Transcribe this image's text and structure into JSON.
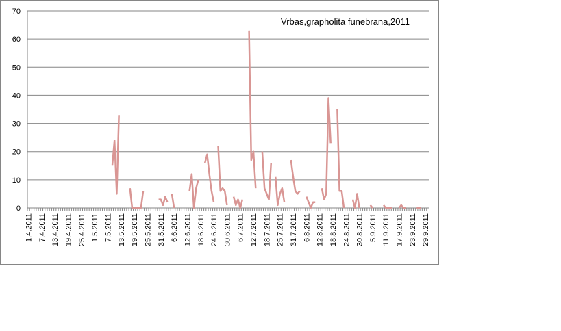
{
  "chart_data": {
    "type": "line",
    "title": "Vrbas,grapholita funebrana,2011",
    "categories": [
      "1.4.2011",
      null,
      null,
      null,
      null,
      null,
      "7.4.2011",
      null,
      null,
      null,
      null,
      null,
      "13.4.2011",
      null,
      null,
      null,
      null,
      null,
      "19.4.2011",
      null,
      null,
      null,
      null,
      null,
      "25.4.2011",
      null,
      null,
      null,
      null,
      null,
      "1.5.2011",
      null,
      null,
      null,
      null,
      null,
      "7.5.2011",
      null,
      null,
      null,
      null,
      null,
      "13.5.2011",
      null,
      null,
      null,
      null,
      null,
      "19.5.2011",
      null,
      null,
      null,
      null,
      null,
      "25.5.2011",
      null,
      null,
      null,
      null,
      null,
      "31.5.2011",
      null,
      null,
      null,
      null,
      null,
      "6.6.2011",
      null,
      null,
      null,
      null,
      null,
      "12.6.2011",
      null,
      null,
      null,
      null,
      null,
      "18.6.2011",
      null,
      null,
      null,
      null,
      null,
      "24.6.2011",
      null,
      null,
      null,
      null,
      null,
      "30.6.2011",
      null,
      null,
      null,
      null,
      null,
      "6.7.2011",
      null,
      null,
      null,
      null,
      null,
      "12.7.2011",
      null,
      null,
      null,
      null,
      null,
      "18.7.2011",
      null,
      null,
      null,
      null,
      null,
      "25.7.2011",
      null,
      null,
      null,
      null,
      null,
      "31.7.2011",
      null,
      null,
      null,
      null,
      null,
      "6.8.2011",
      null,
      null,
      null,
      null,
      null,
      "12.8.2011",
      null,
      null,
      null,
      null,
      null,
      "18.8.2011",
      null,
      null,
      null,
      null,
      null,
      "24.8.2011",
      null,
      null,
      null,
      null,
      null,
      "30.8.2011",
      null,
      null,
      null,
      null,
      null,
      "5.9.2011",
      null,
      null,
      null,
      null,
      null,
      "11.9.2011",
      null,
      null,
      null,
      null,
      null,
      "17.9.2011",
      null,
      null,
      null,
      null,
      null,
      "23.9.2011",
      null,
      null,
      null,
      null,
      null,
      "29.9.2011",
      null
    ],
    "series": [
      {
        "color": "#d99694",
        "values": [
          null,
          null,
          null,
          null,
          null,
          null,
          null,
          null,
          null,
          null,
          null,
          null,
          null,
          null,
          null,
          null,
          null,
          null,
          null,
          null,
          null,
          null,
          null,
          null,
          null,
          null,
          null,
          null,
          null,
          null,
          null,
          null,
          null,
          null,
          null,
          null,
          null,
          null,
          15,
          24,
          5,
          33,
          null,
          null,
          null,
          null,
          7,
          0,
          0,
          0,
          0,
          0,
          6,
          null,
          null,
          null,
          null,
          null,
          null,
          3,
          3,
          1,
          4,
          2,
          null,
          5,
          0,
          null,
          null,
          null,
          null,
          null,
          null,
          6,
          12,
          0,
          7,
          10,
          null,
          null,
          16,
          19,
          12,
          6,
          2,
          null,
          22,
          6,
          7,
          6,
          1,
          null,
          null,
          4,
          1,
          3,
          0,
          3,
          null,
          null,
          63,
          17,
          20,
          7,
          null,
          null,
          20,
          7,
          5,
          3,
          16,
          null,
          11,
          1,
          5,
          7,
          2,
          null,
          null,
          17,
          11,
          6,
          5,
          6,
          null,
          null,
          4,
          2,
          0,
          2,
          2,
          null,
          null,
          7,
          3,
          5,
          39,
          23,
          null,
          null,
          35,
          6,
          6,
          0,
          null,
          null,
          null,
          3,
          0,
          5,
          0,
          null,
          null,
          null,
          null,
          1,
          0,
          null,
          null,
          null,
          null,
          1,
          0,
          0,
          0,
          0,
          null,
          null,
          0,
          1,
          0,
          0,
          null,
          null,
          null,
          null,
          0,
          0,
          0,
          null,
          null,
          null
        ]
      }
    ],
    "ylim": [
      0,
      70
    ],
    "yticks": [
      0,
      10,
      20,
      30,
      40,
      50,
      60,
      70
    ],
    "grid": true
  }
}
